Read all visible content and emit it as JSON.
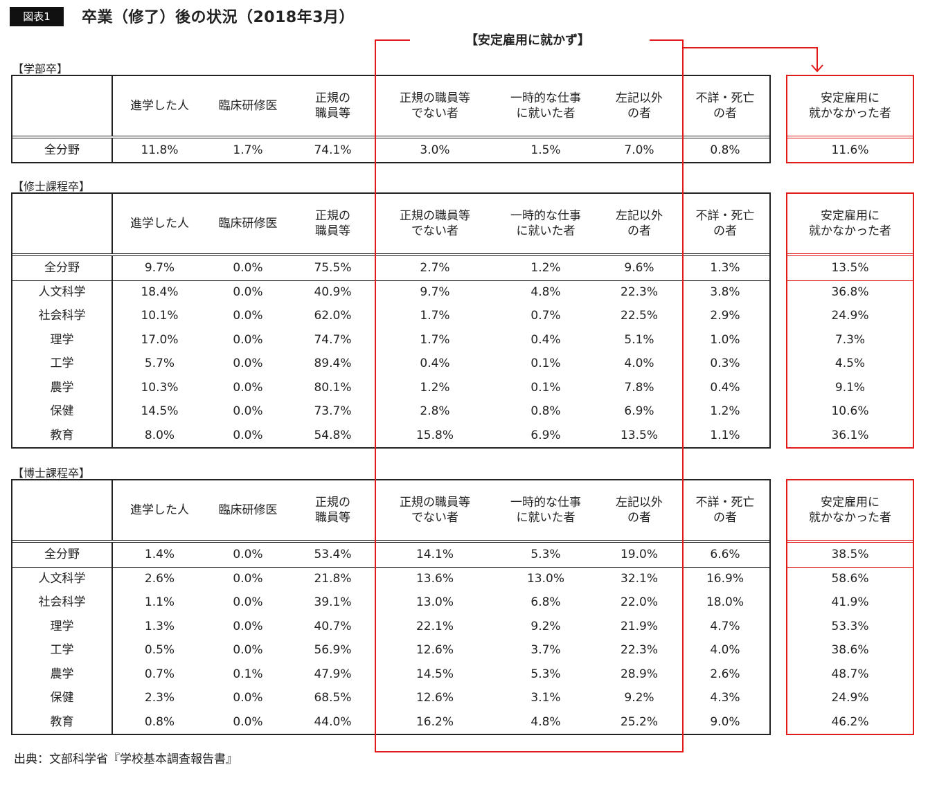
{
  "figure_label": "図表1",
  "title": "卒業（修了）後の状況（2018年3月）",
  "highlight_label": "【安定雇用に就かず】",
  "accent_color": "#e21a1a",
  "headers": {
    "h1": "進学した人",
    "h2": "臨床研修医",
    "h3": "正規の\n職員等",
    "h4": "正規の職員等\nでない者",
    "h5": "一時的な仕事\nに就いた者",
    "h6": "左記以外\nの者",
    "h7": "不詳・死亡\nの者",
    "h8": "安定雇用に\n就かなかった者"
  },
  "undergrad": {
    "label": "【学部卒】",
    "rows": [
      {
        "name": "全分野",
        "v1": "11.8%",
        "v2": "1.7%",
        "v3": "74.1%",
        "v4": "3.0%",
        "v5": "1.5%",
        "v6": "7.0%",
        "v7": "0.8%",
        "v8": "11.6%"
      }
    ]
  },
  "masters": {
    "label": "【修士課程卒】",
    "rows": [
      {
        "name": "全分野",
        "v1": "9.7%",
        "v2": "0.0%",
        "v3": "75.5%",
        "v4": "2.7%",
        "v5": "1.2%",
        "v6": "9.6%",
        "v7": "1.3%",
        "v8": "13.5%"
      },
      {
        "name": "人文科学",
        "v1": "18.4%",
        "v2": "0.0%",
        "v3": "40.9%",
        "v4": "9.7%",
        "v5": "4.8%",
        "v6": "22.3%",
        "v7": "3.8%",
        "v8": "36.8%"
      },
      {
        "name": "社会科学",
        "v1": "10.1%",
        "v2": "0.0%",
        "v3": "62.0%",
        "v4": "1.7%",
        "v5": "0.7%",
        "v6": "22.5%",
        "v7": "2.9%",
        "v8": "24.9%"
      },
      {
        "name": "理学",
        "v1": "17.0%",
        "v2": "0.0%",
        "v3": "74.7%",
        "v4": "1.7%",
        "v5": "0.4%",
        "v6": "5.1%",
        "v7": "1.0%",
        "v8": "7.3%"
      },
      {
        "name": "工学",
        "v1": "5.7%",
        "v2": "0.0%",
        "v3": "89.4%",
        "v4": "0.4%",
        "v5": "0.1%",
        "v6": "4.0%",
        "v7": "0.3%",
        "v8": "4.5%"
      },
      {
        "name": "農学",
        "v1": "10.3%",
        "v2": "0.0%",
        "v3": "80.1%",
        "v4": "1.2%",
        "v5": "0.1%",
        "v6": "7.8%",
        "v7": "0.4%",
        "v8": "9.1%"
      },
      {
        "name": "保健",
        "v1": "14.5%",
        "v2": "0.0%",
        "v3": "73.7%",
        "v4": "2.8%",
        "v5": "0.8%",
        "v6": "6.9%",
        "v7": "1.2%",
        "v8": "10.6%"
      },
      {
        "name": "教育",
        "v1": "8.0%",
        "v2": "0.0%",
        "v3": "54.8%",
        "v4": "15.8%",
        "v5": "6.9%",
        "v6": "13.5%",
        "v7": "1.1%",
        "v8": "36.1%"
      }
    ]
  },
  "doctoral": {
    "label": "【博士課程卒】",
    "rows": [
      {
        "name": "全分野",
        "v1": "1.4%",
        "v2": "0.0%",
        "v3": "53.4%",
        "v4": "14.1%",
        "v5": "5.3%",
        "v6": "19.0%",
        "v7": "6.6%",
        "v8": "38.5%"
      },
      {
        "name": "人文科学",
        "v1": "2.6%",
        "v2": "0.0%",
        "v3": "21.8%",
        "v4": "13.6%",
        "v5": "13.0%",
        "v6": "32.1%",
        "v7": "16.9%",
        "v8": "58.6%"
      },
      {
        "name": "社会科学",
        "v1": "1.1%",
        "v2": "0.0%",
        "v3": "39.1%",
        "v4": "13.0%",
        "v5": "6.8%",
        "v6": "22.0%",
        "v7": "18.0%",
        "v8": "41.9%"
      },
      {
        "name": "理学",
        "v1": "1.3%",
        "v2": "0.0%",
        "v3": "40.7%",
        "v4": "22.1%",
        "v5": "9.2%",
        "v6": "21.9%",
        "v7": "4.7%",
        "v8": "53.3%"
      },
      {
        "name": "工学",
        "v1": "0.5%",
        "v2": "0.0%",
        "v3": "56.9%",
        "v4": "12.6%",
        "v5": "3.7%",
        "v6": "22.3%",
        "v7": "4.0%",
        "v8": "38.6%"
      },
      {
        "name": "農学",
        "v1": "0.7%",
        "v2": "0.1%",
        "v3": "47.9%",
        "v4": "14.5%",
        "v5": "5.3%",
        "v6": "28.9%",
        "v7": "2.6%",
        "v8": "48.7%"
      },
      {
        "name": "保健",
        "v1": "2.3%",
        "v2": "0.0%",
        "v3": "68.5%",
        "v4": "12.6%",
        "v5": "3.1%",
        "v6": "9.2%",
        "v7": "4.3%",
        "v8": "24.9%"
      },
      {
        "name": "教育",
        "v1": "0.8%",
        "v2": "0.0%",
        "v3": "44.0%",
        "v4": "16.2%",
        "v5": "4.8%",
        "v6": "25.2%",
        "v7": "9.0%",
        "v8": "46.2%"
      }
    ]
  },
  "source": "出典：文部科学省『学校基本調査報告書』"
}
